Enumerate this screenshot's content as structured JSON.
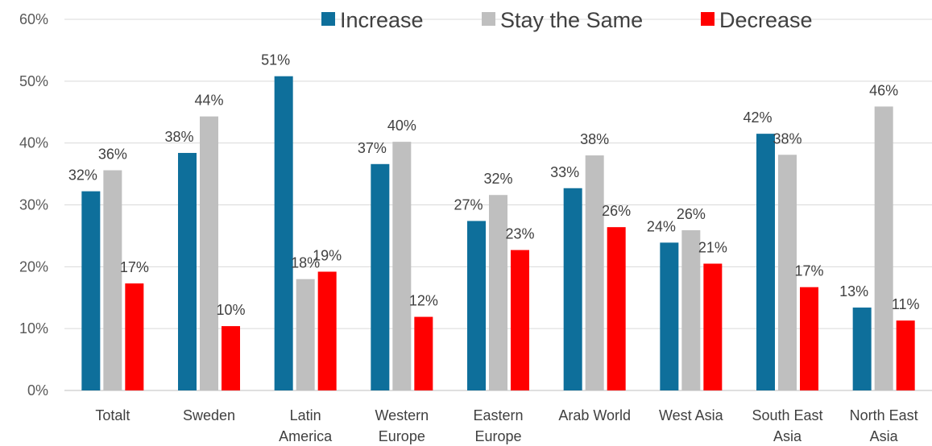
{
  "chart_data": {
    "type": "bar",
    "title": "",
    "xlabel": "",
    "ylabel": "",
    "ylim": [
      0,
      60
    ],
    "yticks": [
      "0%",
      "10%",
      "20%",
      "30%",
      "40%",
      "50%",
      "60%"
    ],
    "grid": true,
    "legend": "top-right",
    "categories": [
      [
        "Totalt"
      ],
      [
        "Sweden"
      ],
      [
        "Latin",
        "America"
      ],
      [
        "Western",
        "Europe"
      ],
      [
        "Eastern",
        "Europe"
      ],
      [
        "Arab World"
      ],
      [
        "West Asia"
      ],
      [
        "South East",
        "Asia"
      ],
      [
        "North East",
        "Asia"
      ]
    ],
    "series": [
      {
        "name": "Increase",
        "color": "#0e6f9b",
        "values": [
          32.2,
          38.4,
          50.8,
          36.6,
          27.4,
          32.7,
          23.9,
          41.5,
          13.4
        ],
        "labels": [
          "32%",
          "38%",
          "51%",
          "37%",
          "27%",
          "33%",
          "24%",
          "42%",
          "13%"
        ]
      },
      {
        "name": "Stay the Same",
        "color": "#bfbfbf",
        "values": [
          35.6,
          44.3,
          18.0,
          40.2,
          31.6,
          38.0,
          25.9,
          38.1,
          45.9
        ],
        "labels": [
          "36%",
          "44%",
          "18%",
          "40%",
          "32%",
          "38%",
          "26%",
          "38%",
          "46%"
        ]
      },
      {
        "name": "Decrease",
        "color": "#ff0000",
        "values": [
          17.3,
          10.4,
          19.2,
          11.9,
          22.7,
          26.4,
          20.5,
          16.7,
          11.3
        ],
        "labels": [
          "17%",
          "10%",
          "19%",
          "12%",
          "23%",
          "26%",
          "21%",
          "17%",
          "11%"
        ]
      }
    ]
  }
}
